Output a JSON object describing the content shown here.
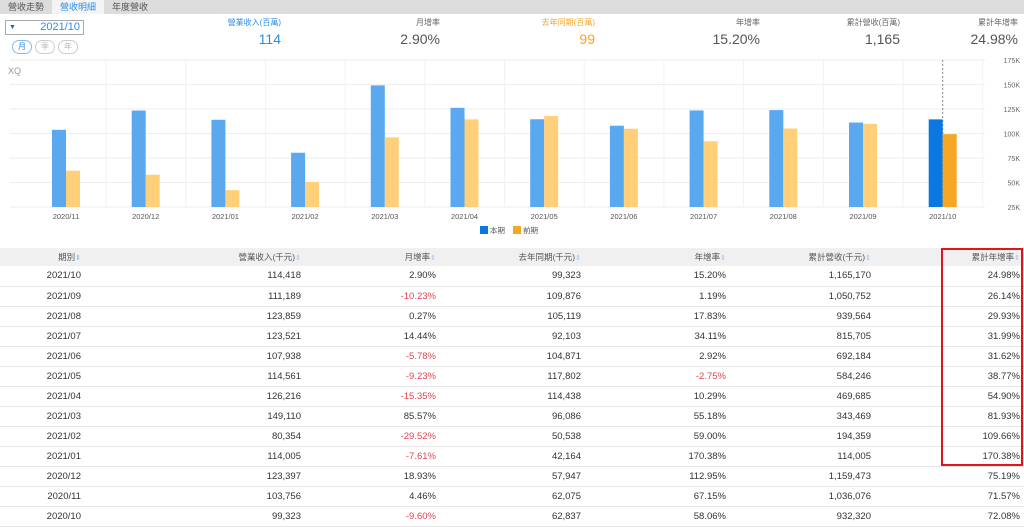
{
  "tabs": [
    "營收走勢",
    "營收明細",
    "年度營收"
  ],
  "date_select": "2021/10",
  "period_buttons": [
    "月",
    "季",
    "年"
  ],
  "stats": [
    {
      "label": "營業收入(百萬)",
      "value": "114",
      "color": "#2a8ee6"
    },
    {
      "label": "月增率",
      "value": "2.90%",
      "color": "#555555"
    },
    {
      "label": "去年同期(百萬)",
      "value": "99",
      "color": "#f5a623"
    },
    {
      "label": "年增率",
      "value": "15.20%",
      "color": "#555555"
    },
    {
      "label": "累計營收(百萬)",
      "value": "1,165",
      "color": "#555555"
    },
    {
      "label": "累計年增率",
      "value": "24.98%",
      "color": "#555555"
    }
  ],
  "chart_data": {
    "type": "bar",
    "watermark": "XQ",
    "categories": [
      "2020/11",
      "2020/12",
      "2021/01",
      "2021/02",
      "2021/03",
      "2021/04",
      "2021/05",
      "2021/06",
      "2021/07",
      "2021/08",
      "2021/09",
      "2021/10"
    ],
    "series": [
      {
        "name": "本期",
        "values": [
          103756,
          123397,
          114005,
          80354,
          149110,
          126216,
          114561,
          107938,
          123521,
          123859,
          111189,
          114418
        ],
        "color": "#5aa9f0",
        "highlight": "#0a78e0"
      },
      {
        "name": "前期",
        "values": [
          62075,
          57947,
          42164,
          50538,
          96086,
          114438,
          117802,
          104871,
          92103,
          105119,
          109876,
          99323
        ],
        "color": "#ffcf7a",
        "highlight": "#f5a623"
      }
    ],
    "y_ticks": [
      "25K",
      "50K",
      "75K",
      "100K",
      "125K",
      "150K",
      "175K"
    ],
    "ylim": [
      25000,
      175000
    ],
    "legend": "bottom-center",
    "highlighted_category": "2021/10"
  },
  "table": {
    "headers": [
      "期別",
      "營業收入(千元)",
      "月增率",
      "去年同期(千元)",
      "年增率",
      "累計營收(千元)",
      "累計年增率"
    ],
    "rows": [
      [
        "2021/10",
        "114,418",
        "2.90%",
        "99,323",
        "15.20%",
        "1,165,170",
        "24.98%"
      ],
      [
        "2021/09",
        "111,189",
        "-10.23%",
        "109,876",
        "1.19%",
        "1,050,752",
        "26.14%"
      ],
      [
        "2021/08",
        "123,859",
        "0.27%",
        "105,119",
        "17.83%",
        "939,564",
        "29.93%"
      ],
      [
        "2021/07",
        "123,521",
        "14.44%",
        "92,103",
        "34.11%",
        "815,705",
        "31.99%"
      ],
      [
        "2021/06",
        "107,938",
        "-5.78%",
        "104,871",
        "2.92%",
        "692,184",
        "31.62%"
      ],
      [
        "2021/05",
        "114,561",
        "-9.23%",
        "117,802",
        "-2.75%",
        "584,246",
        "38.77%"
      ],
      [
        "2021/04",
        "126,216",
        "-15.35%",
        "114,438",
        "10.29%",
        "469,685",
        "54.90%"
      ],
      [
        "2021/03",
        "149,110",
        "85.57%",
        "96,086",
        "55.18%",
        "343,469",
        "81.93%"
      ],
      [
        "2021/02",
        "80,354",
        "-29.52%",
        "50,538",
        "59.00%",
        "194,359",
        "109.66%"
      ],
      [
        "2021/01",
        "114,005",
        "-7.61%",
        "42,164",
        "170.38%",
        "114,005",
        "170.38%"
      ],
      [
        "2020/12",
        "123,397",
        "18.93%",
        "57,947",
        "112.95%",
        "1,159,473",
        "75.19%"
      ],
      [
        "2020/11",
        "103,756",
        "4.46%",
        "62,075",
        "67.15%",
        "1,036,076",
        "71.57%"
      ],
      [
        "2020/10",
        "99,323",
        "-9.60%",
        "62,837",
        "58.06%",
        "932,320",
        "72.08%"
      ]
    ]
  }
}
